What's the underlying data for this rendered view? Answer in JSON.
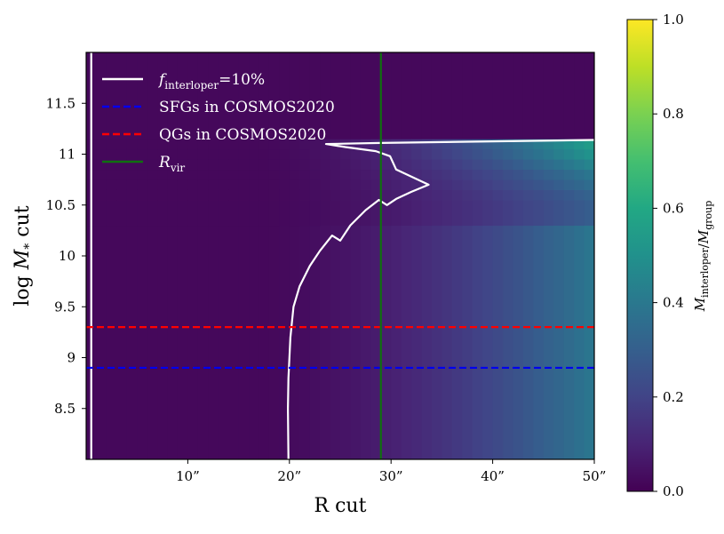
{
  "chart_data": {
    "type": "heatmap",
    "title": "",
    "xlabel": "R cut",
    "ylabel": "log M_* cut",
    "xlim": [
      0,
      50
    ],
    "ylim": [
      8.0,
      12.0
    ],
    "x_ticks": [
      {
        "value": 10,
        "label": "10”"
      },
      {
        "value": 20,
        "label": "20”"
      },
      {
        "value": 30,
        "label": "30”"
      },
      {
        "value": 40,
        "label": "40”"
      },
      {
        "value": 50,
        "label": "50”"
      }
    ],
    "y_ticks": [
      {
        "value": 8.5,
        "label": "8.5"
      },
      {
        "value": 9,
        "label": "9"
      },
      {
        "value": 9.5,
        "label": "9.5"
      },
      {
        "value": 10,
        "label": "10"
      },
      {
        "value": 10.5,
        "label": "10.5"
      },
      {
        "value": 11,
        "label": "11"
      },
      {
        "value": 11.5,
        "label": "11.5"
      }
    ],
    "colormap": "viridis",
    "colorbar": {
      "label": "M_interloper / M_group",
      "range": [
        0.0,
        1.0
      ],
      "ticks": [
        {
          "value": 0.0,
          "label": "0.0"
        },
        {
          "value": 0.2,
          "label": "0.2"
        },
        {
          "value": 0.4,
          "label": "0.4"
        },
        {
          "value": 0.6,
          "label": "0.6"
        },
        {
          "value": 0.8,
          "label": "0.8"
        },
        {
          "value": 1.0,
          "label": "1.0"
        }
      ]
    },
    "heatmap_model": {
      "x_centers_start": 0.5,
      "x_step": 1.0,
      "x_count": 50,
      "y_edges": [
        8.0,
        10.3,
        10.55,
        10.65,
        10.75,
        10.85,
        10.95,
        11.05,
        11.15,
        12.0
      ],
      "y_bands_value_at_R50": [
        0.4,
        0.3,
        0.32,
        0.36,
        0.4,
        0.46,
        0.52,
        0.56,
        0.02
      ],
      "growth_start_R": 16.0,
      "growth_exponent": 1.9
    },
    "series": [
      {
        "name": "f_interloper=10%",
        "kind": "contour",
        "color": "#ffffff",
        "points": [
          [
            19.9,
            8.0
          ],
          [
            19.85,
            8.5
          ],
          [
            19.9,
            8.8
          ],
          [
            20.1,
            9.2
          ],
          [
            20.4,
            9.5
          ],
          [
            21.0,
            9.7
          ],
          [
            22.0,
            9.9
          ],
          [
            23.0,
            10.05
          ],
          [
            24.2,
            10.2
          ],
          [
            25.0,
            10.15
          ],
          [
            26.0,
            10.3
          ],
          [
            27.5,
            10.45
          ],
          [
            28.8,
            10.55
          ],
          [
            29.6,
            10.5
          ],
          [
            30.5,
            10.56
          ],
          [
            32.0,
            10.63
          ],
          [
            33.7,
            10.7
          ],
          [
            30.5,
            10.85
          ],
          [
            29.9,
            10.98
          ],
          [
            28.5,
            11.03
          ],
          [
            25.5,
            11.07
          ],
          [
            23.6,
            11.1
          ],
          [
            29.0,
            11.11
          ],
          [
            50.0,
            11.14
          ]
        ]
      },
      {
        "name": "SFGs in COSMOS2020",
        "kind": "hline",
        "y": 8.9,
        "color": "#0000ee",
        "dash": true
      },
      {
        "name": "QGs in COSMOS2020",
        "kind": "hline",
        "y": 9.3,
        "color": "#ff0000",
        "dash": true
      },
      {
        "name": "R_vir",
        "kind": "vline",
        "x": 29.0,
        "color": "#107010",
        "dash": false
      }
    ],
    "extra_lines": [
      {
        "kind": "vline",
        "x": 0.5,
        "color": "#ffffff"
      }
    ],
    "legend": {
      "placement": "top-left",
      "entries": [
        {
          "text": "f_interloper=10%",
          "color": "#ffffff",
          "dash": false
        },
        {
          "text": "SFGs in COSMOS2020",
          "color": "#0000ee",
          "dash": true
        },
        {
          "text": "QGs in COSMOS2020",
          "color": "#ff0000",
          "dash": true
        },
        {
          "text": "R_vir",
          "color": "#107010",
          "dash": false
        }
      ]
    },
    "grid": false
  }
}
